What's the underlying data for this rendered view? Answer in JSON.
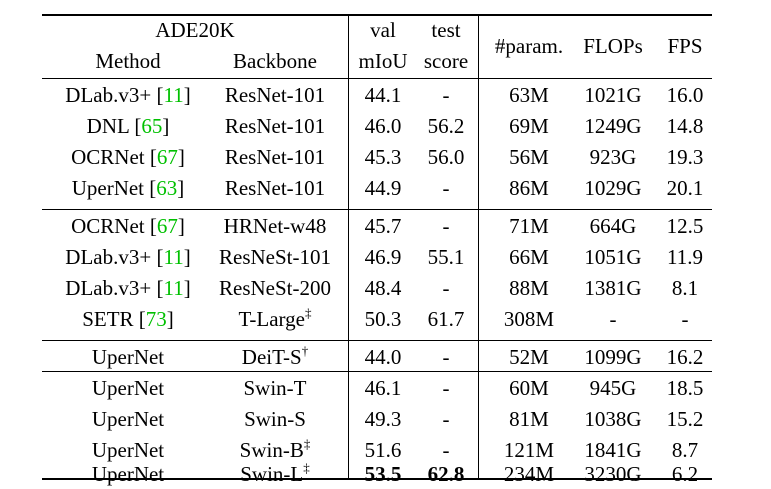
{
  "header": {
    "dataset": "ADE20K",
    "method": "Method",
    "backbone": "Backbone",
    "val_top": "val",
    "val_bottom": "mIoU",
    "test_top": "test",
    "test_bottom": "score",
    "params": "#param.",
    "flops": "FLOPs",
    "fps": "FPS"
  },
  "rows": [
    {
      "method": "DLab.v3+",
      "cite": "11",
      "backbone": "ResNet-101",
      "sup": "",
      "val": "44.1",
      "test": "-",
      "params": "63M",
      "flops": "1021G",
      "fps": "16.0"
    },
    {
      "method": "DNL",
      "cite": "65",
      "backbone": "ResNet-101",
      "sup": "",
      "val": "46.0",
      "test": "56.2",
      "params": "69M",
      "flops": "1249G",
      "fps": "14.8"
    },
    {
      "method": "OCRNet",
      "cite": "67",
      "backbone": "ResNet-101",
      "sup": "",
      "val": "45.3",
      "test": "56.0",
      "params": "56M",
      "flops": "923G",
      "fps": "19.3"
    },
    {
      "method": "UperNet",
      "cite": "63",
      "backbone": "ResNet-101",
      "sup": "",
      "val": "44.9",
      "test": "-",
      "params": "86M",
      "flops": "1029G",
      "fps": "20.1"
    },
    {
      "method": "OCRNet",
      "cite": "67",
      "backbone": "HRNet-w48",
      "sup": "",
      "val": "45.7",
      "test": "-",
      "params": "71M",
      "flops": "664G",
      "fps": "12.5"
    },
    {
      "method": "DLab.v3+",
      "cite": "11",
      "backbone": "ResNeSt-101",
      "sup": "",
      "val": "46.9",
      "test": "55.1",
      "params": "66M",
      "flops": "1051G",
      "fps": "11.9"
    },
    {
      "method": "DLab.v3+",
      "cite": "11",
      "backbone": "ResNeSt-200",
      "sup": "",
      "val": "48.4",
      "test": "-",
      "params": "88M",
      "flops": "1381G",
      "fps": "8.1"
    },
    {
      "method": "SETR",
      "cite": "73",
      "backbone": "T-Large",
      "sup": "‡",
      "val": "50.3",
      "test": "61.7",
      "params": "308M",
      "flops": "-",
      "fps": "-"
    },
    {
      "method": "UperNet",
      "cite": "",
      "backbone": "DeiT-S",
      "sup": "†",
      "val": "44.0",
      "test": "-",
      "params": "52M",
      "flops": "1099G",
      "fps": "16.2"
    },
    {
      "method": "UperNet",
      "cite": "",
      "backbone": "Swin-T",
      "sup": "",
      "val": "46.1",
      "test": "-",
      "params": "60M",
      "flops": "945G",
      "fps": "18.5"
    },
    {
      "method": "UperNet",
      "cite": "",
      "backbone": "Swin-S",
      "sup": "",
      "val": "49.3",
      "test": "-",
      "params": "81M",
      "flops": "1038G",
      "fps": "15.2"
    },
    {
      "method": "UperNet",
      "cite": "",
      "backbone": "Swin-B",
      "sup": "‡",
      "val": "51.6",
      "test": "-",
      "params": "121M",
      "flops": "1841G",
      "fps": "8.7"
    },
    {
      "method": "UperNet",
      "cite": "",
      "backbone": "Swin-L",
      "sup": "‡",
      "val": "53.5",
      "test": "62.8",
      "params": "234M",
      "flops": "3230G",
      "fps": "6.2",
      "bold_cols": [
        "val",
        "test"
      ]
    }
  ],
  "chart_data": {
    "type": "table",
    "columns": [
      "Method",
      "Backbone",
      "val mIoU",
      "test score",
      "#param.",
      "FLOPs",
      "FPS"
    ],
    "caption_group": "ADE20K"
  }
}
